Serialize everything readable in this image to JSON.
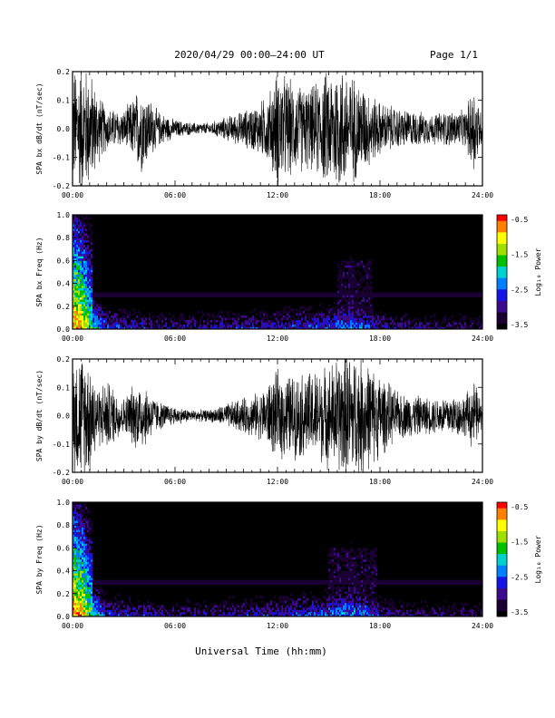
{
  "header": {
    "title": "2020/04/29  00:00–24:00 UT",
    "page": "Page 1/1"
  },
  "x_axis_label": "Universal Time (hh:mm)",
  "x_ticks": [
    "00:00",
    "06:00",
    "12:00",
    "18:00",
    "24:00"
  ],
  "colorbar": {
    "label": "Log₁₀ Power",
    "ticks": [
      "-0.5",
      "-1.5",
      "-2.5",
      "-3.5"
    ],
    "range": [
      -3.5,
      -0.5
    ],
    "colors": [
      "#000000",
      "#1a0033",
      "#3c0a8c",
      "#1414e6",
      "#0080ff",
      "#00d0d0",
      "#00c000",
      "#a0e000",
      "#ffff00",
      "#ff8000",
      "#ff0000"
    ]
  },
  "chart_data": [
    {
      "type": "line",
      "name": "SPA bx dB/dt",
      "ylabel": "SPA bx dB/dt (nT/sec)",
      "xlim": [
        0,
        24
      ],
      "ylim": [
        -0.2,
        0.2
      ],
      "y_ticks": [
        "0.2",
        "0.1",
        "0.0",
        "-0.1",
        "-0.2"
      ],
      "amplitude_envelope": {
        "hours": [
          0,
          0.5,
          1,
          1.5,
          2,
          3,
          3.5,
          4,
          5,
          6,
          7,
          8,
          9,
          10,
          11,
          11.5,
          12,
          13,
          14,
          15,
          15.5,
          16,
          17,
          18,
          19,
          20,
          21,
          22,
          23,
          23.5,
          24
        ],
        "amplitude": [
          0.2,
          0.22,
          0.2,
          0.12,
          0.07,
          0.06,
          0.1,
          0.15,
          0.06,
          0.03,
          0.02,
          0.02,
          0.04,
          0.06,
          0.09,
          0.12,
          0.2,
          0.15,
          0.14,
          0.2,
          0.22,
          0.2,
          0.15,
          0.09,
          0.07,
          0.06,
          0.05,
          0.06,
          0.06,
          0.16,
          0.04
        ]
      }
    },
    {
      "type": "heatmap",
      "name": "SPA bx frequency spectrogram",
      "ylabel": "SPA bx Freq (Hz)",
      "xlim": [
        0,
        24
      ],
      "ylim": [
        0,
        1.0
      ],
      "y_ticks": [
        "1.0",
        "0.8",
        "0.6",
        "0.4",
        "0.2",
        "0.0"
      ],
      "value_range": [
        -3.5,
        -0.5
      ],
      "features": {
        "persistent_line_hz": 0.3,
        "low_freq_power_hours": [
          0,
          0.5,
          1,
          2,
          6,
          12,
          15,
          16,
          17,
          18,
          20,
          24
        ],
        "low_freq_power": [
          -0.8,
          -1.0,
          -1.6,
          -2.6,
          -3.0,
          -2.7,
          -2.5,
          -2.3,
          -2.4,
          -2.8,
          -3.0,
          -3.1
        ],
        "broadband_burst_hours": [
          0.3,
          16.3
        ],
        "high_freq_activity_hours": [
          15.5,
          17.5
        ]
      }
    },
    {
      "type": "line",
      "name": "SPA by dB/dt",
      "ylabel": "SPA by dB/dt (nT/sec)",
      "xlim": [
        0,
        24
      ],
      "ylim": [
        -0.2,
        0.2
      ],
      "y_ticks": [
        "0.2",
        "0.1",
        "0.0",
        "-0.1",
        "-0.2"
      ],
      "amplitude_envelope": {
        "hours": [
          0,
          0.5,
          1,
          1.5,
          2,
          3,
          3.5,
          4,
          5,
          6,
          7,
          8,
          9,
          10,
          11,
          12,
          13,
          14,
          15,
          16,
          17,
          18,
          19,
          20,
          21,
          22,
          23,
          23.5,
          24
        ],
        "amplitude": [
          0.2,
          0.22,
          0.2,
          0.1,
          0.12,
          0.06,
          0.1,
          0.12,
          0.05,
          0.03,
          0.02,
          0.02,
          0.04,
          0.06,
          0.08,
          0.15,
          0.14,
          0.15,
          0.17,
          0.22,
          0.2,
          0.14,
          0.08,
          0.07,
          0.06,
          0.07,
          0.07,
          0.12,
          0.04
        ]
      }
    },
    {
      "type": "heatmap",
      "name": "SPA by frequency spectrogram",
      "ylabel": "SPA by Freq (Hz)",
      "xlim": [
        0,
        24
      ],
      "ylim": [
        0,
        1.0
      ],
      "y_ticks": [
        "1.0",
        "0.8",
        "0.6",
        "0.4",
        "0.2",
        "0.0"
      ],
      "value_range": [
        -3.5,
        -0.5
      ],
      "features": {
        "persistent_line_hz": 0.3,
        "low_freq_power_hours": [
          0,
          0.5,
          1,
          2,
          6,
          12,
          15,
          16,
          17,
          18,
          20,
          24
        ],
        "low_freq_power": [
          -0.8,
          -1.0,
          -1.6,
          -2.6,
          -3.0,
          -2.7,
          -2.4,
          -2.2,
          -2.3,
          -2.8,
          -3.0,
          -3.1
        ],
        "broadband_burst_hours": [
          0.3,
          16.3
        ],
        "high_freq_activity_hours": [
          15.0,
          17.8
        ]
      }
    }
  ]
}
